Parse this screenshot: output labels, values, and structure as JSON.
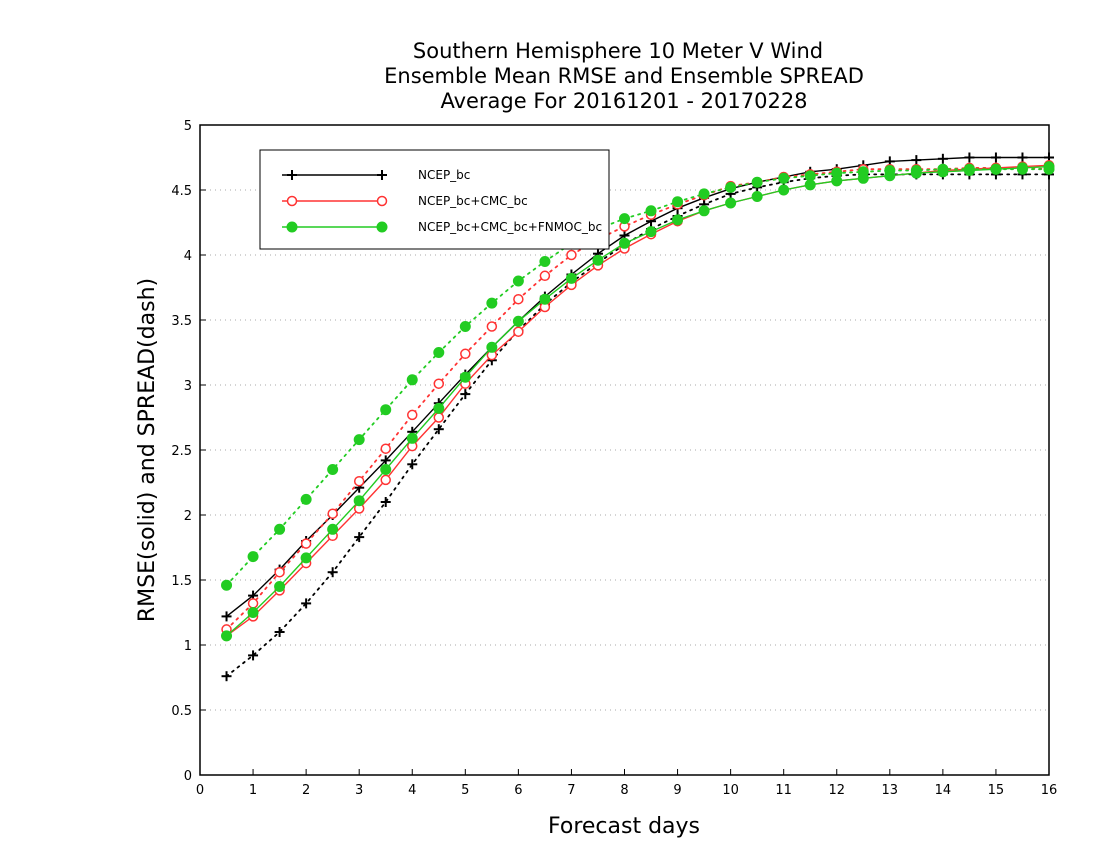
{
  "chart_data": {
    "type": "line",
    "title_lines": [
      "Southern Hemisphere 10 Meter V Wind",
      "Ensemble Mean RMSE and Ensemble SPREAD",
      "Average For 20161201 - 20170228"
    ],
    "xlabel": "Forecast days",
    "ylabel": "RMSE(solid) and SPREAD(dash)",
    "xlim": [
      0,
      16
    ],
    "ylim": [
      0,
      5
    ],
    "xticks": [
      "0",
      "1",
      "2",
      "3",
      "4",
      "5",
      "6",
      "7",
      "8",
      "9",
      "10",
      "11",
      "12",
      "13",
      "14",
      "15",
      "16"
    ],
    "yticks": [
      "0",
      "0.5",
      "1",
      "1.5",
      "2",
      "2.5",
      "3",
      "3.5",
      "4",
      "4.5",
      "5"
    ],
    "grid": "horizontal dotted",
    "legend_position": "top-left",
    "x": [
      0.5,
      1,
      1.5,
      2,
      2.5,
      3,
      3.5,
      4,
      4.5,
      5,
      5.5,
      6,
      6.5,
      7,
      7.5,
      8,
      8.5,
      9,
      9.5,
      10,
      10.5,
      11,
      11.5,
      12,
      12.5,
      13,
      13.5,
      14,
      14.5,
      15,
      15.5,
      16
    ],
    "series": [
      {
        "name": "NCEP_bc",
        "color": "#000000",
        "marker": "plus",
        "rmse": [
          1.22,
          1.38,
          1.58,
          1.8,
          2.0,
          2.21,
          2.42,
          2.64,
          2.86,
          3.08,
          3.29,
          3.49,
          3.68,
          3.85,
          4.01,
          4.15,
          4.26,
          4.36,
          4.44,
          4.51,
          4.56,
          4.6,
          4.64,
          4.66,
          4.69,
          4.72,
          4.73,
          4.74,
          4.75,
          4.75,
          4.75,
          4.75
        ],
        "spread": [
          0.76,
          0.92,
          1.1,
          1.32,
          1.56,
          1.83,
          2.1,
          2.39,
          2.66,
          2.93,
          3.19,
          3.42,
          3.62,
          3.79,
          3.94,
          4.08,
          4.2,
          4.3,
          4.39,
          4.47,
          4.52,
          4.56,
          4.59,
          4.61,
          4.62,
          4.62,
          4.62,
          4.62,
          4.62,
          4.62,
          4.62,
          4.62
        ]
      },
      {
        "name": "NCEP_bc+CMC_bc",
        "color": "#ff3333",
        "marker": "open-circle",
        "rmse": [
          1.07,
          1.22,
          1.42,
          1.63,
          1.84,
          2.05,
          2.27,
          2.53,
          2.75,
          3.01,
          3.23,
          3.41,
          3.6,
          3.77,
          3.92,
          4.05,
          4.16,
          4.26,
          4.34,
          4.4,
          4.45,
          4.5,
          4.54,
          4.57,
          4.59,
          4.61,
          4.63,
          4.65,
          4.66,
          4.67,
          4.68,
          4.69
        ],
        "spread": [
          1.12,
          1.32,
          1.56,
          1.78,
          2.01,
          2.26,
          2.51,
          2.77,
          3.01,
          3.24,
          3.45,
          3.66,
          3.84,
          4.0,
          4.12,
          4.22,
          4.31,
          4.39,
          4.46,
          4.53,
          4.56,
          4.6,
          4.62,
          4.64,
          4.66,
          4.66,
          4.66,
          4.66,
          4.67,
          4.67,
          4.67,
          4.66
        ]
      },
      {
        "name": "NCEP_bc+CMC_bc+FNMOC_bc",
        "color": "#22cc22",
        "marker": "filled-circle",
        "rmse": [
          1.07,
          1.25,
          1.45,
          1.67,
          1.89,
          2.11,
          2.35,
          2.59,
          2.82,
          3.06,
          3.29,
          3.49,
          3.66,
          3.82,
          3.96,
          4.09,
          4.18,
          4.27,
          4.34,
          4.4,
          4.45,
          4.5,
          4.54,
          4.57,
          4.59,
          4.61,
          4.63,
          4.64,
          4.65,
          4.66,
          4.67,
          4.68
        ],
        "spread": [
          1.46,
          1.68,
          1.89,
          2.12,
          2.35,
          2.58,
          2.81,
          3.04,
          3.25,
          3.45,
          3.63,
          3.8,
          3.95,
          4.09,
          4.2,
          4.28,
          4.34,
          4.41,
          4.47,
          4.52,
          4.56,
          4.59,
          4.61,
          4.63,
          4.64,
          4.65,
          4.65,
          4.66,
          4.66,
          4.66,
          4.66,
          4.66
        ]
      }
    ]
  }
}
